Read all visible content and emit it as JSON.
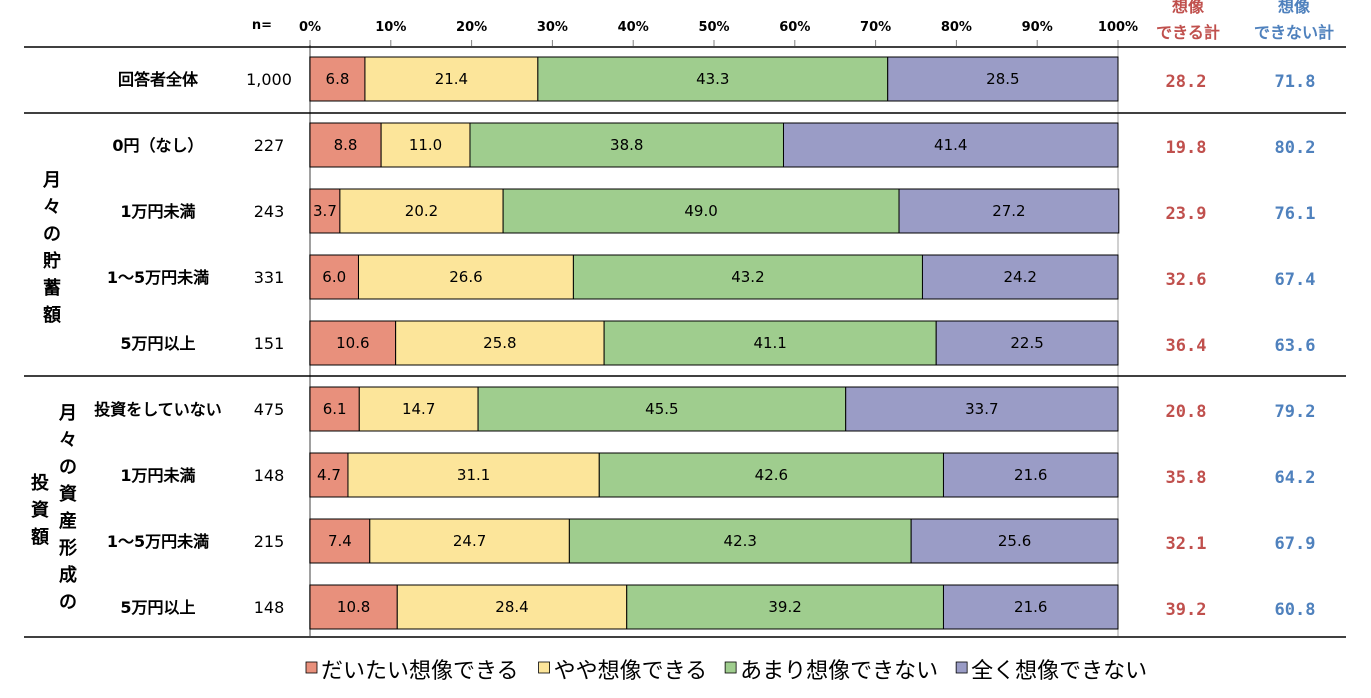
{
  "chart_data": {
    "type": "bar",
    "orientation": "horizontal",
    "stacked": true,
    "x_ticks": [
      "0%",
      "10%",
      "20%",
      "30%",
      "40%",
      "50%",
      "60%",
      "70%",
      "80%",
      "90%",
      "100%"
    ],
    "xlim": [
      0,
      100
    ],
    "n_header": "n=",
    "total_headers": {
      "can": [
        "想像",
        "できる計"
      ],
      "cannot": [
        "想像",
        "できない計"
      ]
    },
    "groups": [
      {
        "label": "",
        "label_columns": []
      },
      {
        "label": "月々の貯蓄額",
        "label_columns": [
          "月々の貯蓄額"
        ]
      },
      {
        "label": "月々の資産形成の投資額",
        "label_columns": [
          "月々の資産形成の",
          "投資額"
        ]
      }
    ],
    "series": [
      {
        "name": "だいたい想像できる",
        "color": "#e8907c"
      },
      {
        "name": "やや想像できる",
        "color": "#fce59a"
      },
      {
        "name": "あまり想像できない",
        "color": "#9fcd8e"
      },
      {
        "name": "全く想像できない",
        "color": "#9a9cc6"
      }
    ],
    "rows": [
      {
        "group": 0,
        "label": "回答者全体",
        "n": "1,000",
        "values": [
          6.8,
          21.4,
          43.3,
          28.5
        ],
        "total_can": "28.2",
        "total_cannot": "71.8"
      },
      {
        "group": 1,
        "label": "0円（なし）",
        "n": "227",
        "values": [
          8.8,
          11.0,
          38.8,
          41.4
        ],
        "total_can": "19.8",
        "total_cannot": "80.2"
      },
      {
        "group": 1,
        "label": "1万円未満",
        "n": "243",
        "values": [
          3.7,
          20.2,
          49.0,
          27.2
        ],
        "total_can": "23.9",
        "total_cannot": "76.1"
      },
      {
        "group": 1,
        "label": "1～5万円未満",
        "n": "331",
        "values": [
          6.0,
          26.6,
          43.2,
          24.2
        ],
        "total_can": "32.6",
        "total_cannot": "67.4"
      },
      {
        "group": 1,
        "label": "5万円以上",
        "n": "151",
        "values": [
          10.6,
          25.8,
          41.1,
          22.5
        ],
        "total_can": "36.4",
        "total_cannot": "63.6"
      },
      {
        "group": 2,
        "label": "投資をしていない",
        "n": "475",
        "values": [
          6.1,
          14.7,
          45.5,
          33.7
        ],
        "total_can": "20.8",
        "total_cannot": "79.2"
      },
      {
        "group": 2,
        "label": "1万円未満",
        "n": "148",
        "values": [
          4.7,
          31.1,
          42.6,
          21.6
        ],
        "total_can": "35.8",
        "total_cannot": "64.2"
      },
      {
        "group": 2,
        "label": "1～5万円未満",
        "n": "215",
        "values": [
          7.4,
          24.7,
          42.3,
          25.6
        ],
        "total_can": "32.1",
        "total_cannot": "67.9"
      },
      {
        "group": 2,
        "label": "5万円以上",
        "n": "148",
        "values": [
          10.8,
          28.4,
          39.2,
          21.6
        ],
        "total_can": "39.2",
        "total_cannot": "60.8"
      }
    ],
    "colors": {
      "can_total": "#c0504d",
      "cannot_total": "#4f81bd"
    },
    "legend_position": "bottom"
  }
}
